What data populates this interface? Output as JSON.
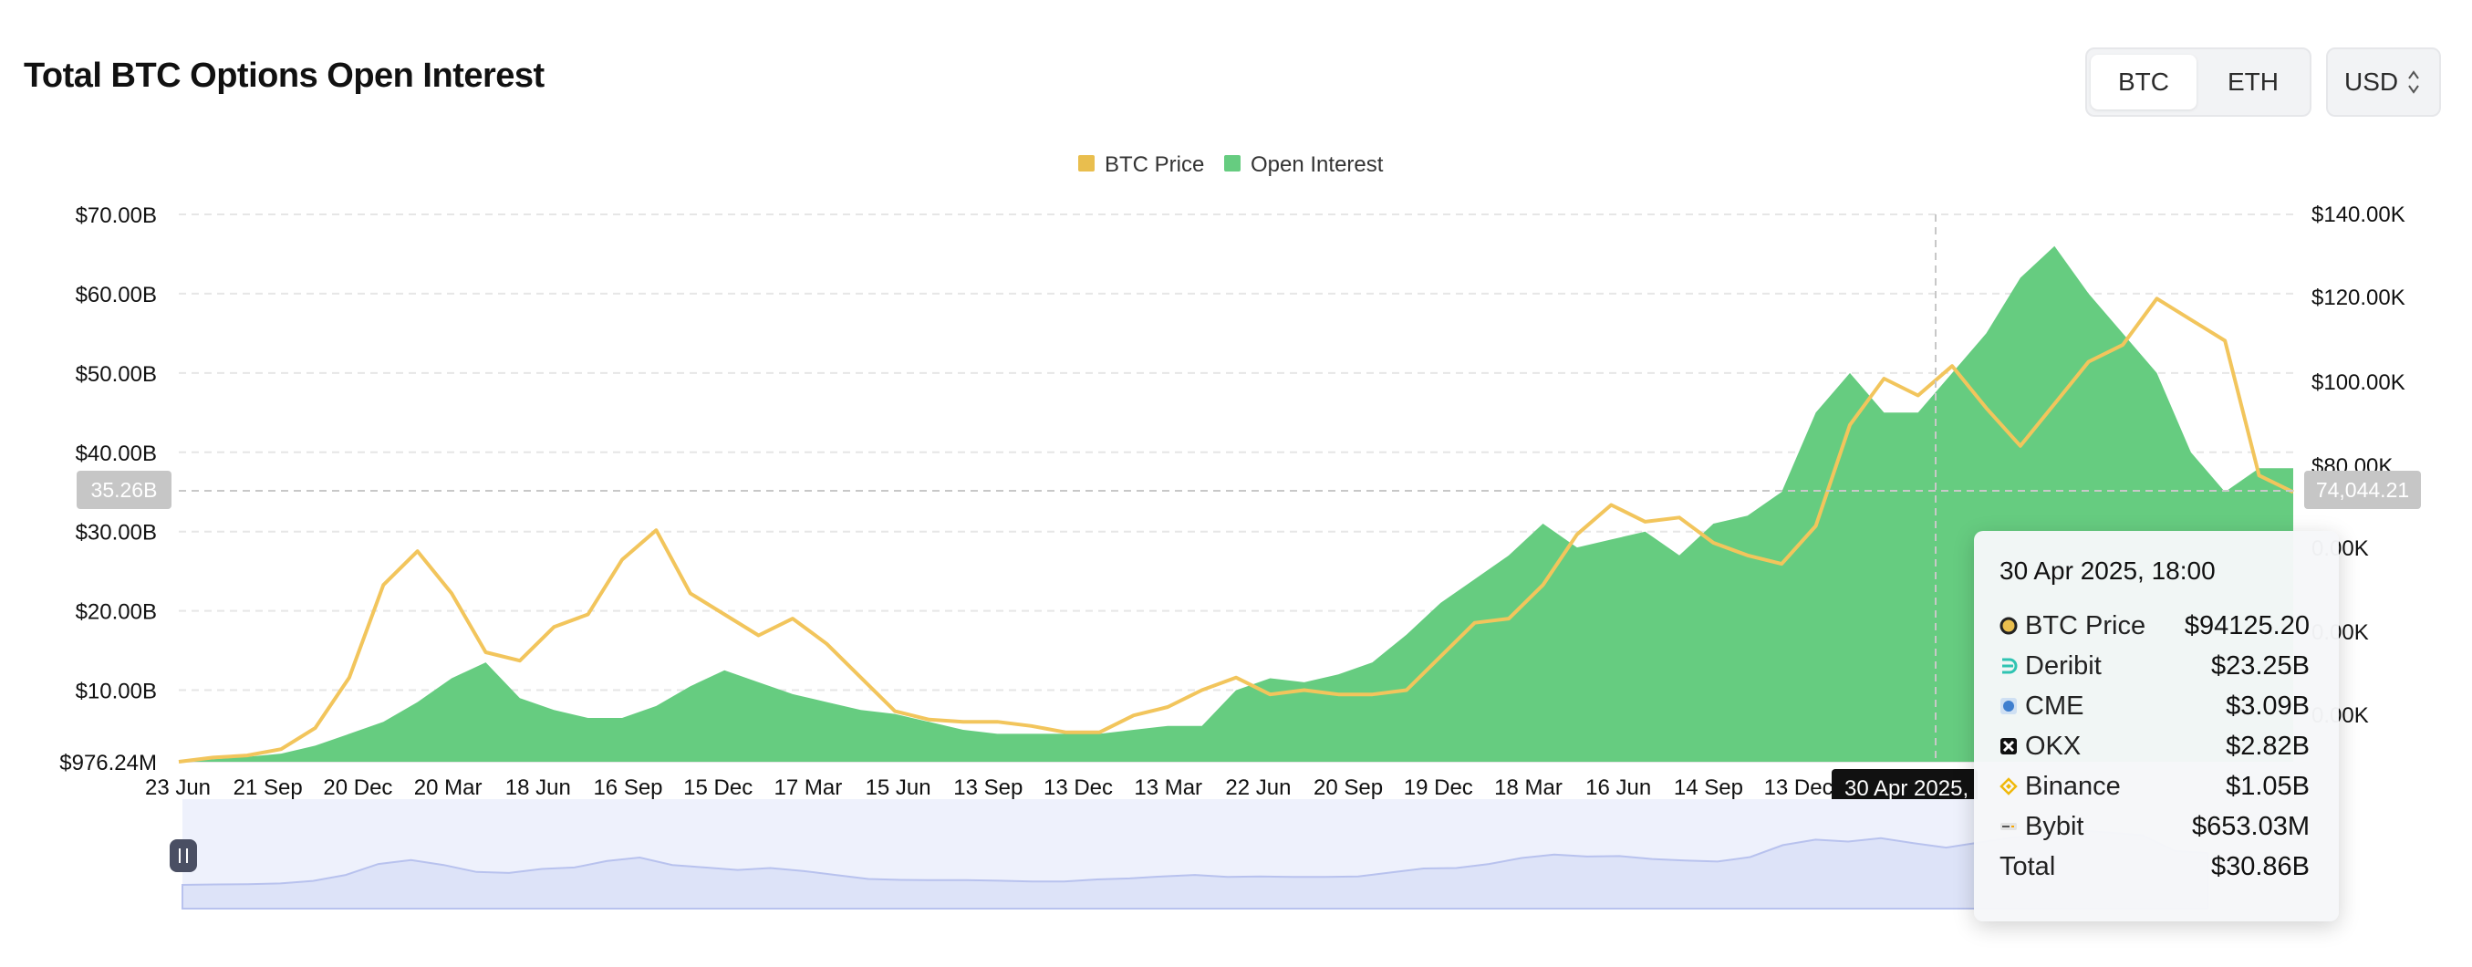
{
  "header": {
    "title": "Total BTC Options Open Interest"
  },
  "toggles": {
    "btc_label": "BTC",
    "eth_label": "ETH",
    "currency_label": "USD"
  },
  "colors": {
    "price": "#F2C55C",
    "open_interest": "#66CC80",
    "navigator_fill": "#DDE3F8"
  },
  "legend": [
    {
      "label": "BTC Price",
      "color": "#E9BE4E"
    },
    {
      "label": "Open Interest",
      "color": "#66CC80"
    }
  ],
  "crosshair": {
    "left_value": "35.26B",
    "right_value": "74,044.21",
    "x_label": "30 Apr 2025,"
  },
  "tooltip": {
    "title": "30 Apr 2025, 18:00",
    "rows": [
      {
        "name": "BTC Price",
        "value": "$94125.20",
        "icon": "circle-dot-icon"
      },
      {
        "name": "Deribit",
        "value": "$23.25B",
        "icon": "deribit-icon"
      },
      {
        "name": "CME",
        "value": "$3.09B",
        "icon": "cme-icon"
      },
      {
        "name": "OKX",
        "value": "$2.82B",
        "icon": "okx-icon"
      },
      {
        "name": "Binance",
        "value": "$1.05B",
        "icon": "binance-icon"
      },
      {
        "name": "Bybit",
        "value": "$653.03M",
        "icon": "bybit-icon"
      }
    ],
    "total_label": "Total",
    "total_value": "$30.86B"
  },
  "chart_data": {
    "type": "area",
    "left_axis": {
      "ticks": [
        "$976.24M",
        "$10.00B",
        "$20.00B",
        "$30.00B",
        "$40.00B",
        "$50.00B",
        "$60.00B",
        "$70.00B"
      ],
      "ylim": [
        0.97624,
        70
      ]
    },
    "right_axis": {
      "ticks": [
        "40.00K",
        "60.00K",
        "80.00K",
        "100.00K",
        "120.00K",
        "140.00K"
      ],
      "visible_labels": [
        "0.00K",
        "0.00K",
        "0.00K",
        "$80.00K",
        "$100.00K",
        "$120.00K",
        "$140.00K"
      ],
      "ylim": [
        10000,
        140000
      ]
    },
    "x_ticks": [
      "23 Jun",
      "21 Sep",
      "20 Dec",
      "20 Mar",
      "18 Jun",
      "16 Sep",
      "15 Dec",
      "17 Mar",
      "15 Jun",
      "13 Sep",
      "13 Dec",
      "13 Mar",
      "22 Jun",
      "20 Sep",
      "19 Dec",
      "18 Mar",
      "16 Jun",
      "14 Sep",
      "13 Dec"
    ],
    "grid": true,
    "legend_position": "top-center",
    "series": [
      {
        "name": "Open Interest",
        "unit": "USD billions",
        "values": [
          1.0,
          1.3,
          1.6,
          2.0,
          3.0,
          4.5,
          6.0,
          8.5,
          11.5,
          13.5,
          9.0,
          7.5,
          6.5,
          6.5,
          8.0,
          10.5,
          12.5,
          11.0,
          9.5,
          8.5,
          7.5,
          7.0,
          6.0,
          5.0,
          4.5,
          4.5,
          4.5,
          4.5,
          5.0,
          5.5,
          5.5,
          10.0,
          11.5,
          11.0,
          12.0,
          13.5,
          17.0,
          21.0,
          24.0,
          27.0,
          31.0,
          28.0,
          29.0,
          30.0,
          27.0,
          31.0,
          32.0,
          35.0,
          45.0,
          50.0,
          45.0,
          45.0,
          50.0,
          55.0,
          62.0,
          66.0,
          60.0,
          55.0,
          50.0,
          40.0,
          35.0,
          38.0,
          38.0
        ]
      },
      {
        "name": "BTC Price",
        "unit": "USD",
        "values": [
          10000,
          11000,
          11500,
          13000,
          18000,
          30000,
          52000,
          60000,
          50000,
          36000,
          34000,
          42000,
          45000,
          58000,
          65000,
          50000,
          45000,
          40000,
          44000,
          38000,
          30000,
          22000,
          20000,
          19500,
          19500,
          18500,
          17000,
          17000,
          21000,
          23000,
          27000,
          30000,
          26000,
          27000,
          26000,
          26000,
          27000,
          35000,
          43000,
          44000,
          52000,
          64000,
          71000,
          67000,
          68000,
          62000,
          59000,
          57000,
          66000,
          90000,
          101000,
          97000,
          104000,
          94000,
          85000,
          95000,
          105000,
          109000,
          120000,
          115000,
          110000,
          78000,
          74044
        ]
      }
    ]
  }
}
